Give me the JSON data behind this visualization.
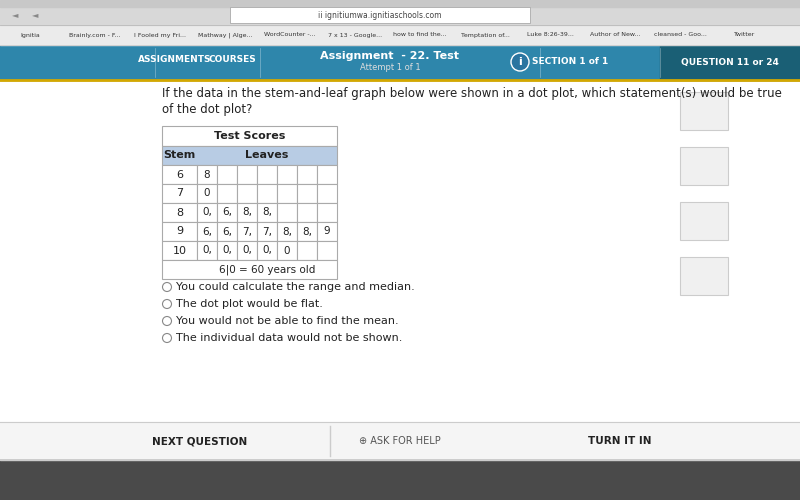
{
  "title_line1": "If the data in the stem-and-leaf graph below were shown in a dot plot, which statement(s) would be true",
  "title_line2": "of the dot plot?",
  "table_title": "Test Scores",
  "rows": [
    [
      "6",
      "8",
      "",
      "",
      "",
      "",
      ""
    ],
    [
      "7",
      "0",
      "",
      "",
      "",
      "",
      ""
    ],
    [
      "8",
      "0,",
      "6,",
      "8,",
      "8,",
      "",
      ""
    ],
    [
      "9",
      "6,",
      "6,",
      "7,",
      "7,",
      "8,",
      "8,",
      "9"
    ],
    [
      "10",
      "0,",
      "0,",
      "0,",
      "0,",
      "0",
      "",
      ""
    ]
  ],
  "key_text": "6|0 = 60 years old",
  "choices": [
    "You could calculate the range and median.",
    "The dot plot would be flat.",
    "You would not be able to find the mean.",
    "The individual data would not be shown."
  ],
  "page_bg": "#ffffff",
  "header_bg": "#b8cce4",
  "table_border": "#aaaaaa",
  "text_color": "#222222",
  "nav_bg": "#2e86ab",
  "nav_dark_bg": "#1a5f75",
  "top_bar_bg": "#c8c8c8",
  "browser_bar_bg": "#e8e8e8",
  "bookmark_bar_bg": "#f0f0f0",
  "bottom_bar_bg": "#f8f8f8",
  "dock_bg": "#555555"
}
